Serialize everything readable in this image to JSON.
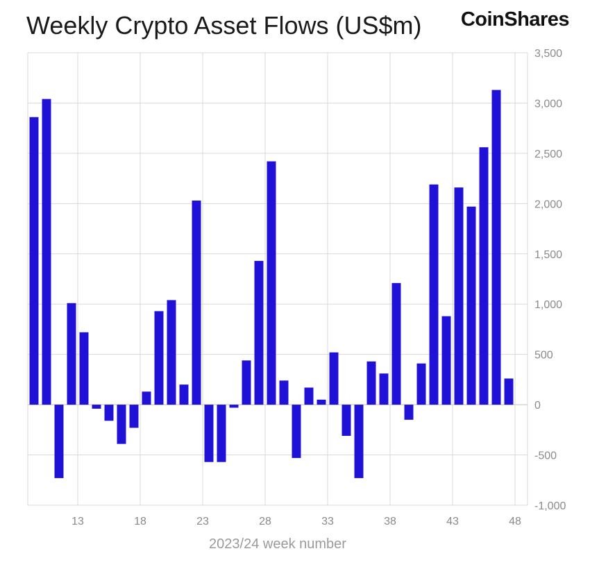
{
  "header": {
    "title": "Weekly Crypto Asset Flows (US$m)",
    "brand": "CoinShares"
  },
  "chart_data": {
    "type": "bar",
    "title": "Weekly Crypto Asset Flows (US$m)",
    "xlabel": "2023/24 week number",
    "ylabel": "",
    "ylim": [
      -1000,
      3500
    ],
    "yticks": [
      -1000,
      -500,
      0,
      500,
      1000,
      1500,
      2000,
      2500,
      3000,
      3500
    ],
    "ytick_labels": [
      "-1,000",
      "-500",
      "0",
      "500",
      "1,000",
      "1,500",
      "2,000",
      "2,500",
      "3,000",
      "3,500"
    ],
    "x_tick_labels": [
      "13",
      "18",
      "23",
      "28",
      "33",
      "38",
      "43",
      "48"
    ],
    "grid": true,
    "y_axis_side": "right",
    "bar_color": "#1f12d6",
    "categories": [
      10,
      11,
      12,
      13,
      14,
      15,
      16,
      17,
      18,
      19,
      20,
      21,
      22,
      23,
      24,
      25,
      26,
      27,
      28,
      29,
      30,
      31,
      32,
      33,
      34,
      35,
      36,
      37,
      38,
      39,
      40,
      41,
      42,
      43,
      44,
      45,
      46,
      47,
      48,
      49
    ],
    "values": [
      2860,
      3040,
      -730,
      1010,
      720,
      -40,
      -160,
      -390,
      -230,
      130,
      930,
      1040,
      200,
      2030,
      -570,
      -570,
      -30,
      440,
      1430,
      2420,
      240,
      -530,
      170,
      50,
      520,
      -310,
      -730,
      430,
      310,
      1210,
      -150,
      410,
      2190,
      880,
      2160,
      1970,
      2560,
      3130,
      260,
      0
    ]
  }
}
